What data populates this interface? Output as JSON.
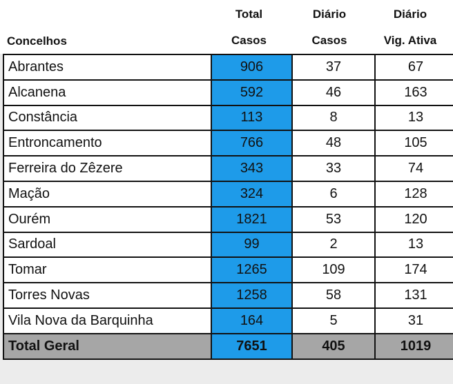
{
  "headers": {
    "concelhos": "Concelhos",
    "total_top": "Total",
    "total_bottom": "Casos",
    "diario_casos_top": "Diário",
    "diario_casos_bottom": "Casos",
    "diario_vig_top": "Diário",
    "diario_vig_bottom": "Vig. Ativa"
  },
  "rows": [
    {
      "name": "Abrantes",
      "total": "906",
      "diario_casos": "37",
      "diario_vig": "67"
    },
    {
      "name": "Alcanena",
      "total": "592",
      "diario_casos": "46",
      "diario_vig": "163"
    },
    {
      "name": "Constância",
      "total": "113",
      "diario_casos": "8",
      "diario_vig": "13"
    },
    {
      "name": "Entroncamento",
      "total": "766",
      "diario_casos": "48",
      "diario_vig": "105"
    },
    {
      "name": "Ferreira do Zêzere",
      "total": "343",
      "diario_casos": "33",
      "diario_vig": "74"
    },
    {
      "name": "Mação",
      "total": "324",
      "diario_casos": "6",
      "diario_vig": "128"
    },
    {
      "name": "Ourém",
      "total": "1821",
      "diario_casos": "53",
      "diario_vig": "120"
    },
    {
      "name": "Sardoal",
      "total": "99",
      "diario_casos": "2",
      "diario_vig": "13"
    },
    {
      "name": "Tomar",
      "total": "1265",
      "diario_casos": "109",
      "diario_vig": "174"
    },
    {
      "name": "Torres Novas",
      "total": "1258",
      "diario_casos": "58",
      "diario_vig": "131"
    },
    {
      "name": "Vila Nova da Barquinha",
      "total": "164",
      "diario_casos": "5",
      "diario_vig": "31"
    }
  ],
  "footer": {
    "name": "Total Geral",
    "total": "7651",
    "diario_casos": "405",
    "diario_vig": "1019"
  },
  "colors": {
    "total_column": "#1e9be9",
    "footer_bg": "#a6a6a6"
  }
}
